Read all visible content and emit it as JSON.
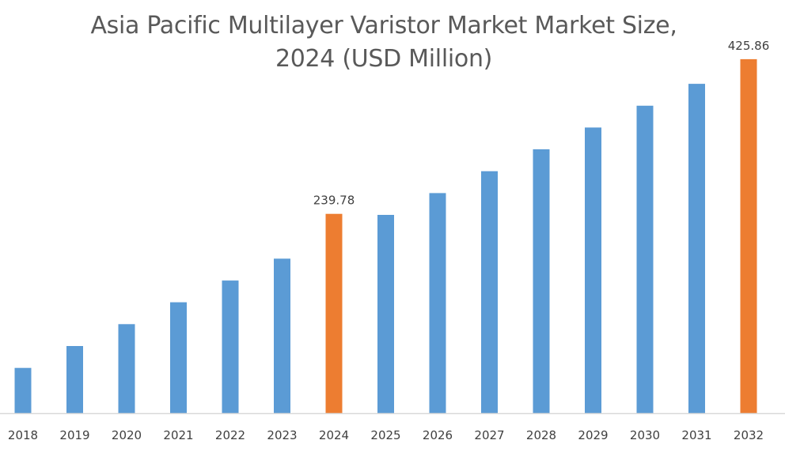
{
  "chart_data": {
    "type": "bar",
    "title_line1": "Asia Pacific Multilayer Varistor Market Market Size,",
    "title_line2": "2024 (USD Million)",
    "xlabel": "",
    "ylabel": "",
    "categories": [
      "2018",
      "2019",
      "2020",
      "2021",
      "2022",
      "2023",
      "2024",
      "2025",
      "2026",
      "2027",
      "2028",
      "2029",
      "2030",
      "2031",
      "2032"
    ],
    "series": [
      {
        "values": [
          54.5,
          80.8,
          107.1,
          133.4,
          159.6,
          185.9,
          239.78,
          238.5,
          264.8,
          291.1,
          317.4,
          343.6,
          369.9,
          396.2,
          425.86
        ]
      }
    ],
    "data_labels": [
      {
        "category": "2024",
        "text": "239.78"
      },
      {
        "category": "2032",
        "text": "425.86"
      }
    ],
    "highlight_categories": [
      "2024",
      "2032"
    ],
    "ylim": [
      0,
      440
    ],
    "grid": false,
    "legend": "none",
    "colors": {
      "bar": "#5b9bd5",
      "highlight": "#ed7d31",
      "axis": "#d9d9d9"
    }
  }
}
